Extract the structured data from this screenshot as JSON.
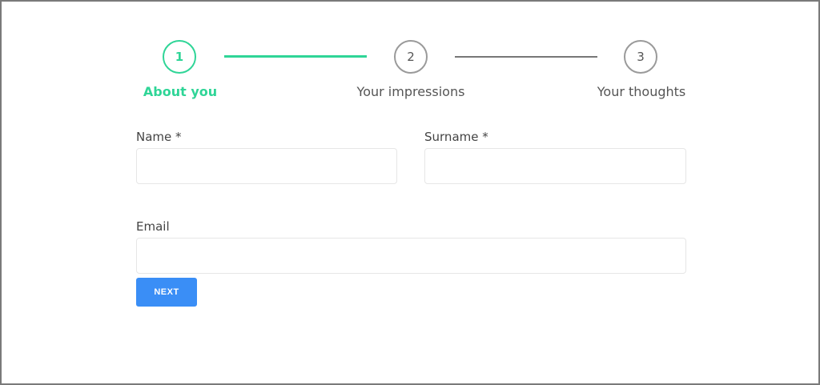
{
  "steps": [
    {
      "number": "1",
      "label": "About you",
      "active": true
    },
    {
      "number": "2",
      "label": "Your impressions",
      "active": false
    },
    {
      "number": "3",
      "label": "Your thoughts",
      "active": false
    }
  ],
  "form": {
    "name_label": "Name *",
    "name_value": "",
    "surname_label": "Surname *",
    "surname_value": "",
    "email_label": "Email",
    "email_value": "",
    "next_label": "NEXT"
  },
  "colors": {
    "active": "#2fd597",
    "button": "#3a8ef6",
    "inactive": "#9a9a9a"
  }
}
